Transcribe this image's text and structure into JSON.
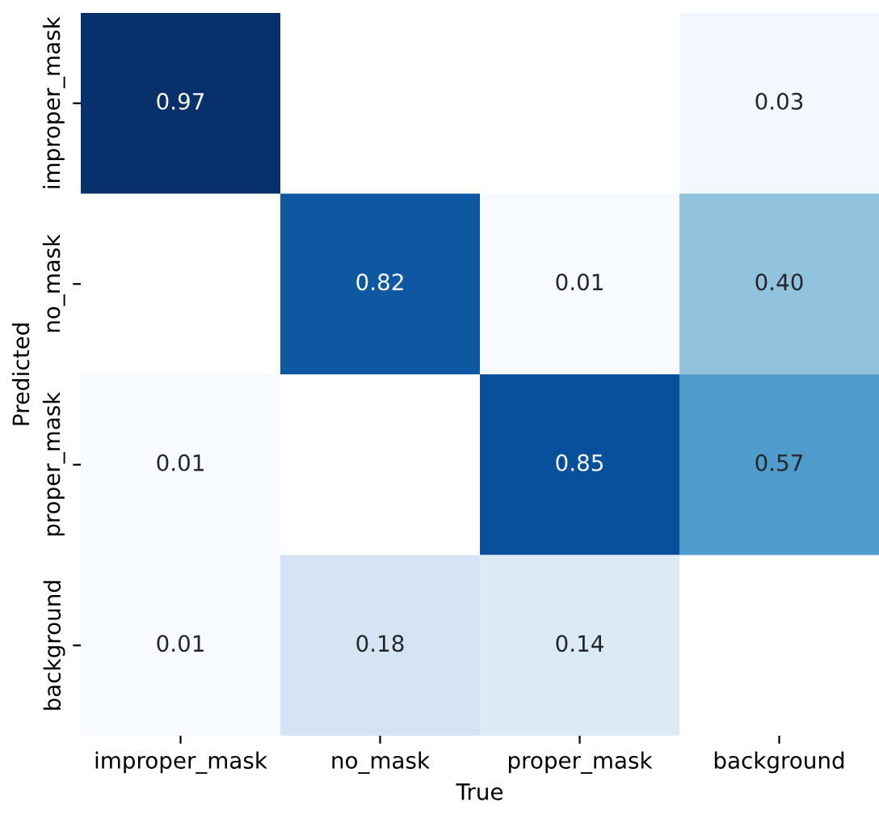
{
  "chart_data": {
    "type": "heatmap",
    "xlabel": "True",
    "ylabel": "Predicted",
    "categories": [
      "improper_mask",
      "no_mask",
      "proper_mask",
      "background"
    ],
    "y_categories": [
      "improper_mask",
      "no_mask",
      "proper_mask",
      "background"
    ],
    "cells": [
      [
        0.97,
        null,
        null,
        0.03
      ],
      [
        null,
        0.82,
        0.01,
        0.4
      ],
      [
        0.01,
        null,
        0.85,
        0.57
      ],
      [
        0.01,
        0.18,
        0.14,
        null
      ]
    ],
    "cell_labels": [
      [
        "0.97",
        null,
        null,
        "0.03"
      ],
      [
        null,
        "0.82",
        "0.01",
        "0.40"
      ],
      [
        "0.01",
        null,
        "0.85",
        "0.57"
      ],
      [
        "0.01",
        "0.18",
        "0.14",
        null
      ]
    ],
    "grid": false
  }
}
